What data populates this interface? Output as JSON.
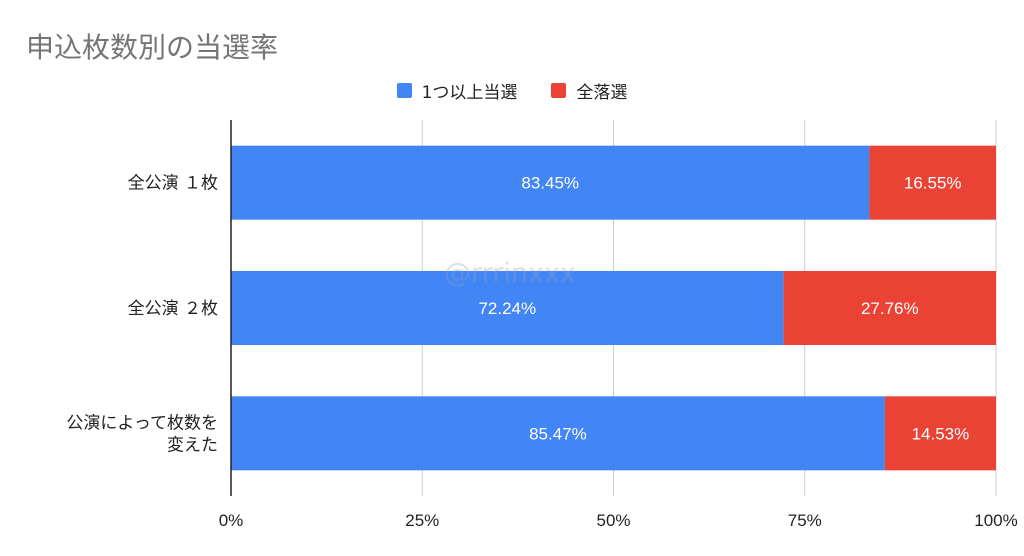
{
  "chart_data": {
    "type": "bar",
    "orientation": "horizontal",
    "stacked": "percent",
    "title": "申込枚数別の当選率",
    "categories": [
      [
        "全公演 １枚"
      ],
      [
        "全公演 ２枚"
      ],
      [
        "公演によって枚数を",
        "変えた"
      ]
    ],
    "series": [
      {
        "name": "1つ以上当選",
        "color": "#4285F4",
        "values": [
          83.45,
          72.24,
          85.47
        ],
        "labels": [
          "83.45%",
          "72.24%",
          "85.47%"
        ]
      },
      {
        "name": "全落選",
        "color": "#EA4335",
        "values": [
          16.55,
          27.76,
          14.53
        ],
        "labels": [
          "16.55%",
          "27.76%",
          "14.53%"
        ]
      }
    ],
    "x_ticks": [
      "0%",
      "25%",
      "50%",
      "75%",
      "100%"
    ],
    "xlim": [
      0,
      100
    ],
    "grid": true,
    "legend_position": "top-center"
  },
  "watermark": "@rrrinxxx"
}
